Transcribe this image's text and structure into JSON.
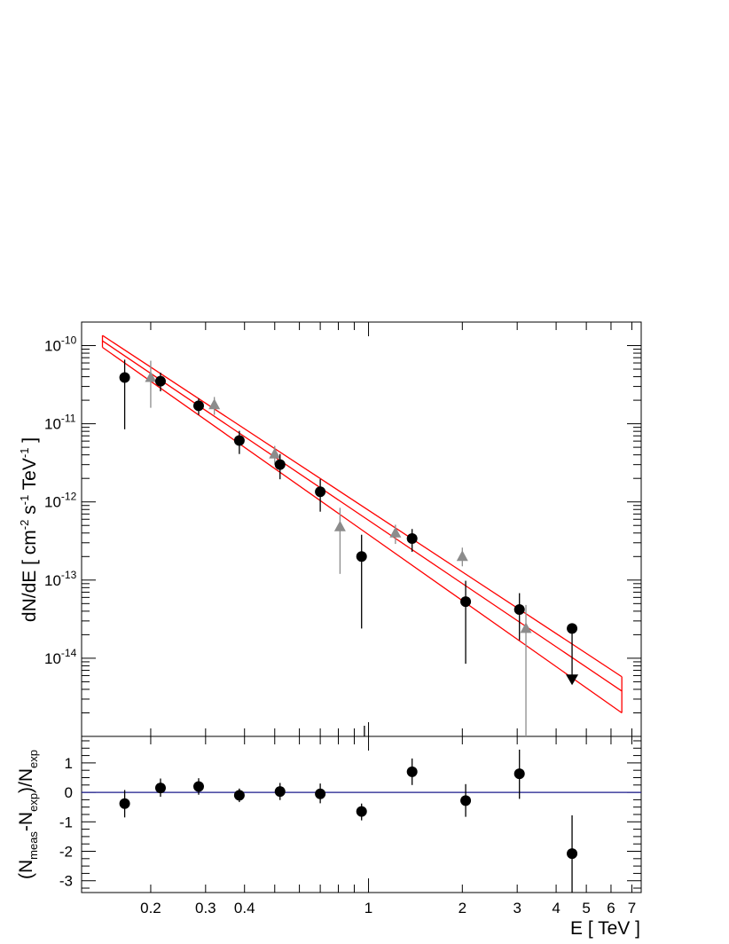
{
  "chart_data": [
    {
      "type": "scatter",
      "panel": "spectrum",
      "ylabel": {
        "pre": "dN/dE [ cm",
        "sup1": "-2",
        "mid1": " s",
        "sup2": "-1",
        "mid2": " TeV",
        "sup3": "-1",
        "post": " ]"
      },
      "xlabel": "E [ TeV ]",
      "x_scale": "log",
      "y_scale": "log",
      "xlim": [
        0.12,
        7.5
      ],
      "ylim": [
        1e-15,
        2e-10
      ],
      "y_tick_labels": [
        {
          "value": 1e-10,
          "base": "10",
          "exp": "-10"
        },
        {
          "value": 1e-11,
          "base": "10",
          "exp": "-11"
        },
        {
          "value": 1e-12,
          "base": "10",
          "exp": "-12"
        },
        {
          "value": 1e-13,
          "base": "10",
          "exp": "-13"
        },
        {
          "value": 1e-14,
          "base": "10",
          "exp": "-14"
        }
      ],
      "series": [
        {
          "marker": "circle",
          "color": "#000000",
          "points": [
            {
              "x": 0.165,
              "y": 3.9e-11,
              "ylo": 8.5e-12,
              "yhi": 6.6e-11
            },
            {
              "x": 0.215,
              "y": 3.5e-11,
              "ylo": 2.6e-11,
              "yhi": 4.5e-11
            },
            {
              "x": 0.285,
              "y": 1.7e-11,
              "ylo": 1.3e-11,
              "yhi": 2.1e-11
            },
            {
              "x": 0.385,
              "y": 6.1e-12,
              "ylo": 4.1e-12,
              "yhi": 8.1e-12
            },
            {
              "x": 0.52,
              "y": 3e-12,
              "ylo": 1.95e-12,
              "yhi": 4.1e-12
            },
            {
              "x": 0.7,
              "y": 1.35e-12,
              "ylo": 7.5e-13,
              "yhi": 1.95e-12
            },
            {
              "x": 0.95,
              "y": 2e-13,
              "ylo": 2.4e-14,
              "yhi": 3.8e-13
            },
            {
              "x": 1.38,
              "y": 3.4e-13,
              "ylo": 2.3e-13,
              "yhi": 4.5e-13
            },
            {
              "x": 2.05,
              "y": 5.3e-14,
              "ylo": 8.5e-15,
              "yhi": 9.8e-14
            },
            {
              "x": 3.05,
              "y": 4.2e-14,
              "ylo": 1.7e-14,
              "yhi": 6.8e-14
            },
            {
              "x": 4.5,
              "y": 2.4e-14,
              "ylo": 5.5e-15,
              "yhi": 2.4e-14,
              "upper_limit": 5.3e-15
            }
          ]
        },
        {
          "marker": "triangle",
          "color": "#8c8c8c",
          "points": [
            {
              "x": 0.2,
              "y": 3.9e-11,
              "ylo": 1.6e-11,
              "yhi": 6.4e-11
            },
            {
              "x": 0.32,
              "y": 1.75e-11,
              "ylo": 1.3e-11,
              "yhi": 2.2e-11
            },
            {
              "x": 0.5,
              "y": 4.1e-12,
              "ylo": 3e-12,
              "yhi": 5.2e-12
            },
            {
              "x": 0.81,
              "y": 4.8e-13,
              "ylo": 1.2e-13,
              "yhi": 8.4e-13
            },
            {
              "x": 1.22,
              "y": 4e-13,
              "ylo": 2.9e-13,
              "yhi": 5.1e-13
            },
            {
              "x": 2.0,
              "y": 2e-13,
              "ylo": 1.5e-13,
              "yhi": 2.6e-13
            },
            {
              "x": 3.2,
              "y": 2.4e-14,
              "ylo": 1e-15,
              "yhi": 4.8e-14
            }
          ]
        }
      ],
      "fit": {
        "color": "#ff0000",
        "x_range": [
          0.14,
          6.5
        ],
        "central": [
          1.15e-10,
          3.8e-15
        ],
        "upper": [
          1.35e-10,
          5.8e-15
        ],
        "lower": [
          9.5e-11,
          2e-15
        ]
      }
    },
    {
      "type": "scatter",
      "panel": "residuals",
      "ylabel": {
        "pre": "(N",
        "sub1": "meas",
        "mid": "-N",
        "sub2": "exp",
        "mid2": ")/N",
        "sub3": "exp"
      },
      "xlabel": "E [ TeV ]",
      "x_scale": "log",
      "xlim": [
        0.12,
        7.5
      ],
      "ylim": [
        -3.4,
        1.9
      ],
      "y_tick_labels": [
        "1",
        "0",
        "-1",
        "-2",
        "-3"
      ],
      "x_tick_labels": [
        "0.2",
        "0.3",
        "0.4",
        "1",
        "2",
        "3",
        "4",
        "5",
        "6",
        "7"
      ],
      "reference_line": {
        "y": 0,
        "color": "#1a1a8c"
      },
      "points": [
        {
          "x": 0.165,
          "y": -0.38,
          "ylo": -0.85,
          "yhi": 0.08
        },
        {
          "x": 0.215,
          "y": 0.15,
          "ylo": -0.15,
          "yhi": 0.47
        },
        {
          "x": 0.285,
          "y": 0.2,
          "ylo": -0.08,
          "yhi": 0.48
        },
        {
          "x": 0.385,
          "y": -0.1,
          "ylo": -0.33,
          "yhi": 0.13
        },
        {
          "x": 0.52,
          "y": 0.03,
          "ylo": -0.26,
          "yhi": 0.32
        },
        {
          "x": 0.7,
          "y": -0.05,
          "ylo": -0.37,
          "yhi": 0.3
        },
        {
          "x": 0.95,
          "y": -0.65,
          "ylo": -0.95,
          "yhi": -0.38
        },
        {
          "x": 1.38,
          "y": 0.7,
          "ylo": 0.25,
          "yhi": 1.15
        },
        {
          "x": 2.05,
          "y": -0.28,
          "ylo": -0.83,
          "yhi": 0.28
        },
        {
          "x": 3.05,
          "y": 0.63,
          "ylo": -0.22,
          "yhi": 1.45
        },
        {
          "x": 4.5,
          "y": -2.08,
          "ylo": -3.4,
          "yhi": -0.78
        }
      ]
    }
  ]
}
